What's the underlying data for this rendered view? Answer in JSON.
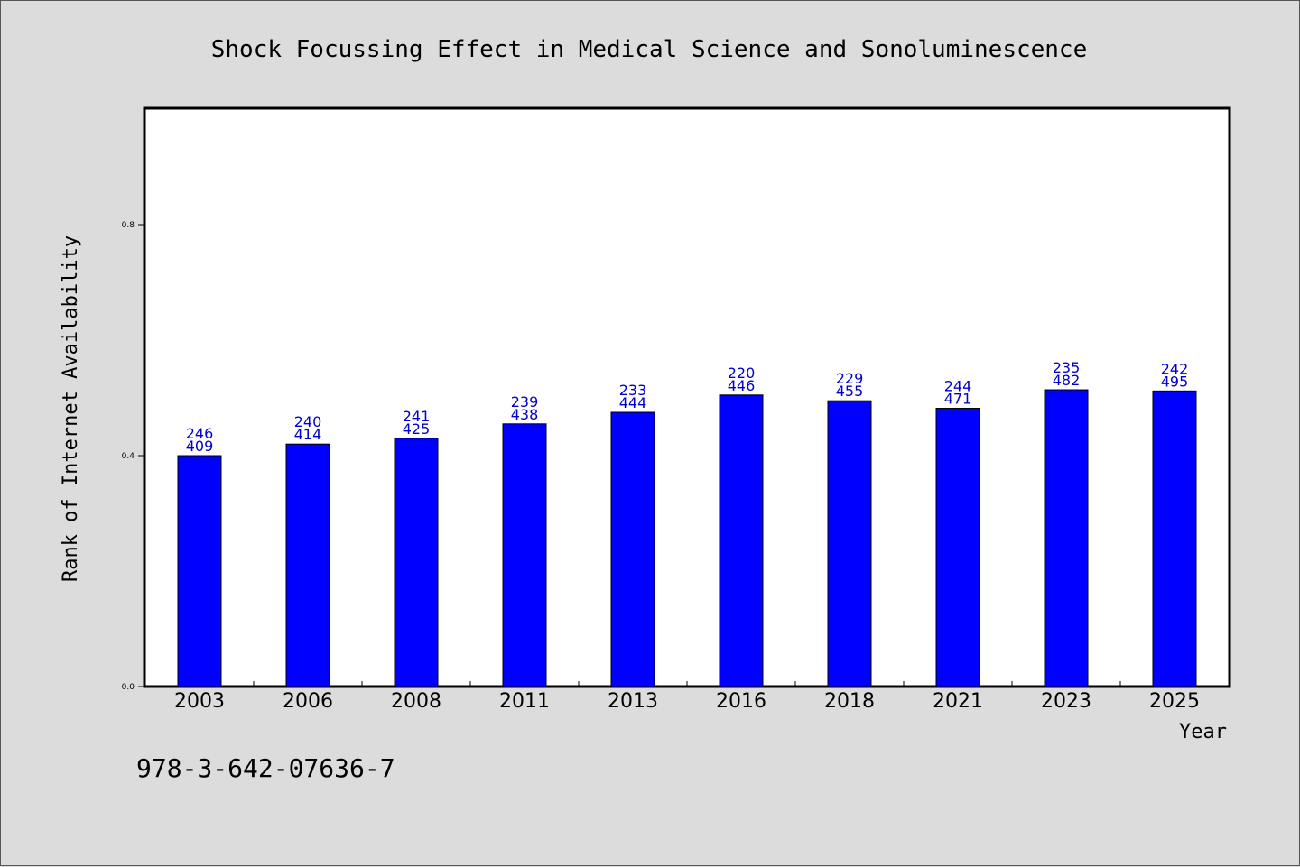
{
  "footer": {
    "isbn": "978-3-642-07636-7"
  },
  "chart_data": {
    "type": "bar",
    "title": "Shock Focussing Effect in Medical Science and Sonoluminescence",
    "xlabel": "Year",
    "ylabel": "Rank of Internet Availability",
    "ylim": [
      0,
      1.0
    ],
    "yticks": [
      0.0,
      0.4,
      0.8
    ],
    "ytick_labels": [
      "0.0",
      "0.4",
      "0.8"
    ],
    "grid": false,
    "bar_color": "#0000ff",
    "label_color": "#0000cc",
    "categories": [
      "2003",
      "2006",
      "2008",
      "2011",
      "2013",
      "2016",
      "2018",
      "2021",
      "2023",
      "2025"
    ],
    "values": [
      0.4,
      0.42,
      0.43,
      0.455,
      0.475,
      0.505,
      0.495,
      0.482,
      0.514,
      0.512
    ],
    "data_labels_top": [
      "246",
      "240",
      "241",
      "239",
      "233",
      "220",
      "229",
      "244",
      "235",
      "242"
    ],
    "data_labels_bottom": [
      "409",
      "414",
      "425",
      "438",
      "444",
      "446",
      "455",
      "471",
      "482",
      "495"
    ]
  }
}
